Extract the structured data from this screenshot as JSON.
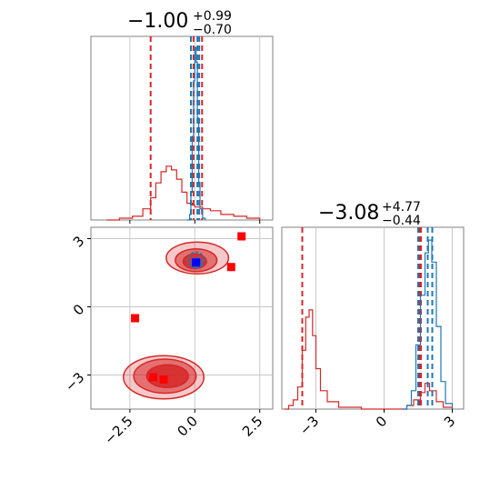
{
  "colors": {
    "red": "#d62728",
    "blue": "#1f77b4",
    "marker_red": "#ff0000",
    "marker_blue": "#0000ff",
    "grid": "#c8c8c8",
    "axis": "#808080"
  },
  "chart_data": [
    {
      "type": "area",
      "panel": "hist-param1",
      "title": {
        "main": "−1.00",
        "sup": "+0.99",
        "sub": "−0.70"
      },
      "xlim": [
        -4.0,
        3.0
      ],
      "x_ticks": [
        -2.5,
        0.0,
        2.5
      ],
      "y_ticks": [],
      "series": [
        {
          "color": "red",
          "x": [
            -3.4,
            -2.9,
            -2.4,
            -2.0,
            -1.7,
            -1.5,
            -1.3,
            -1.1,
            -0.9,
            -0.7,
            -0.5,
            -0.3,
            -0.1,
            0.0,
            0.1,
            0.3,
            0.6,
            1.0,
            1.5,
            2.0,
            2.5
          ],
          "y": [
            0.0,
            0.01,
            0.02,
            0.06,
            0.12,
            0.2,
            0.26,
            0.29,
            0.27,
            0.22,
            0.15,
            0.09,
            0.08,
            0.07,
            0.07,
            0.06,
            0.05,
            0.03,
            0.02,
            0.01,
            0.0
          ],
          "vlines": [
            -1.7,
            -0.05,
            0.28
          ]
        },
        {
          "color": "blue",
          "x": [
            -0.3,
            -0.2,
            -0.15,
            -0.1,
            -0.05,
            0.0,
            0.05,
            0.1,
            0.15,
            0.2,
            0.3,
            0.4
          ],
          "y": [
            0.0,
            0.03,
            0.15,
            0.45,
            0.75,
            0.93,
            0.85,
            0.55,
            0.2,
            0.06,
            0.01,
            0.0
          ],
          "vlines": [
            -0.15,
            0.1,
            0.17
          ]
        }
      ]
    },
    {
      "type": "scatter",
      "panel": "2d-param1-param2",
      "xlim": [
        -4.0,
        3.0
      ],
      "ylim": [
        -4.5,
        3.5
      ],
      "x_ticks": [
        -2.5,
        0.0,
        2.5
      ],
      "y_ticks": [
        3,
        0,
        -3
      ],
      "x_tick_labels": [
        "−2.5",
        "0.0",
        "2.5"
      ],
      "y_tick_labels": [
        "3",
        "0",
        "−3"
      ],
      "contours": [
        {
          "color": "red",
          "level": "outer",
          "cx": -1.2,
          "cy": -3.1,
          "rx": 1.55,
          "ry": 0.95
        },
        {
          "color": "red",
          "level": "mid",
          "cx": -1.15,
          "cy": -3.05,
          "rx": 1.2,
          "ry": 0.75
        },
        {
          "color": "red",
          "level": "inner",
          "cx": -1.05,
          "cy": -3.05,
          "rx": 0.8,
          "ry": 0.5
        },
        {
          "color": "red",
          "level": "outer",
          "cx": 0.1,
          "cy": 2.15,
          "rx": 1.2,
          "ry": 0.7
        },
        {
          "color": "red",
          "level": "mid",
          "cx": 0.05,
          "cy": 2.05,
          "rx": 0.8,
          "ry": 0.5
        },
        {
          "color": "red",
          "level": "inner",
          "cx": 0.0,
          "cy": 2.0,
          "rx": 0.45,
          "ry": 0.32
        },
        {
          "color": "blue",
          "level": "outer",
          "cx": 0.05,
          "cy": 2.05,
          "rx": 0.3,
          "ry": 0.35
        },
        {
          "color": "blue",
          "level": "inner",
          "cx": 0.05,
          "cy": 1.95,
          "rx": 0.18,
          "ry": 0.22
        }
      ],
      "markers_red": [
        {
          "x": 1.8,
          "y": 3.1
        },
        {
          "x": 1.4,
          "y": 1.75
        },
        {
          "x": -2.3,
          "y": -0.5
        },
        {
          "x": -1.6,
          "y": -3.1
        },
        {
          "x": -1.2,
          "y": -3.2
        }
      ],
      "markers_blue": [
        {
          "x": 0.05,
          "y": 1.95
        }
      ]
    },
    {
      "type": "area",
      "panel": "hist-param2",
      "title": {
        "main": "−3.08",
        "sup": "+4.77",
        "sub": "−0.44"
      },
      "xlim": [
        -4.5,
        3.5
      ],
      "x_ticks": [
        -3,
        0,
        3
      ],
      "x_tick_labels": [
        "−3",
        "0",
        "3"
      ],
      "y_ticks": [],
      "series": [
        {
          "color": "red",
          "x": [
            -4.4,
            -4.2,
            -4.0,
            -3.8,
            -3.6,
            -3.45,
            -3.3,
            -3.15,
            -3.0,
            -2.8,
            -2.5,
            -2.0,
            -1.0,
            0.0,
            1.0,
            1.3,
            1.6,
            1.8,
            2.0,
            2.3,
            2.6,
            3.0
          ],
          "y": [
            0.0,
            0.02,
            0.05,
            0.12,
            0.32,
            0.5,
            0.54,
            0.4,
            0.22,
            0.1,
            0.04,
            0.01,
            0.0,
            0.0,
            0.02,
            0.05,
            0.09,
            0.14,
            0.1,
            0.04,
            0.01,
            0.0
          ],
          "vlines": [
            -3.6,
            1.55,
            1.62
          ]
        },
        {
          "color": "blue",
          "x": [
            0.8,
            1.0,
            1.2,
            1.4,
            1.6,
            1.8,
            1.95,
            2.1,
            2.3,
            2.5,
            2.7,
            3.0
          ],
          "y": [
            0.0,
            0.02,
            0.1,
            0.35,
            0.62,
            0.85,
            0.92,
            0.8,
            0.45,
            0.15,
            0.03,
            0.0
          ],
          "vlines": [
            1.5,
            1.92,
            2.12
          ]
        }
      ]
    }
  ]
}
